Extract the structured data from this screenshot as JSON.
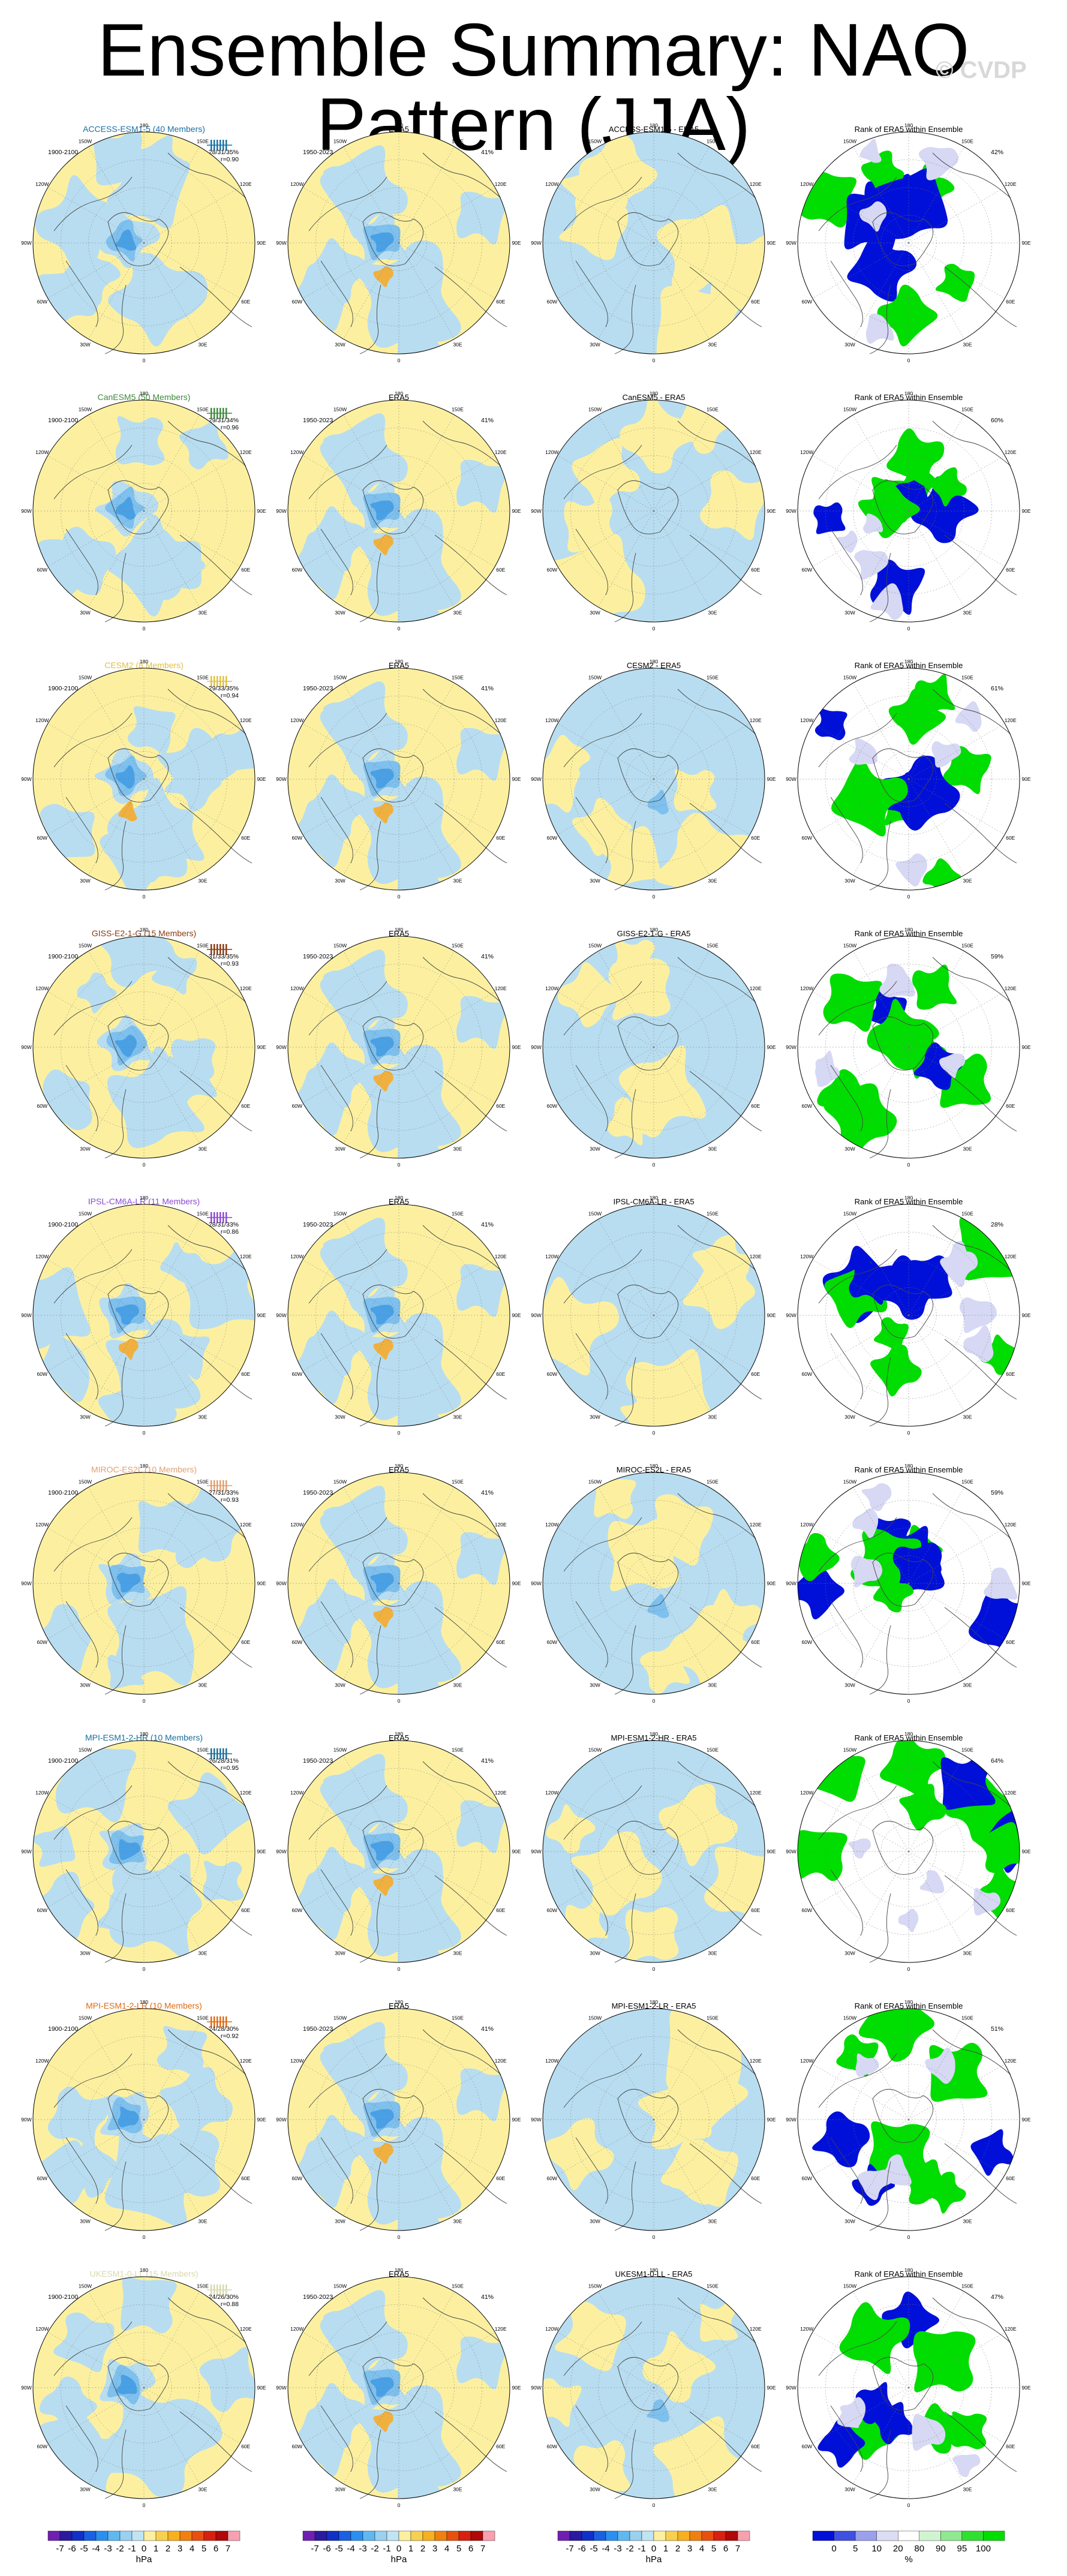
{
  "page": {
    "title": "Ensemble Summary: NAO Pattern (JJA)",
    "watermark": "© CVDP"
  },
  "chart_data": {
    "type": "polar-map-panels",
    "column_titles": {
      "obs": "ERA5",
      "rank": "Rank of ERA5 within Ensemble",
      "diff_suffix": " - ERA5"
    },
    "model_period": "1900-2100",
    "obs_period": "1950-2023",
    "obs_pct": "41%",
    "longitude_labels": [
      "180",
      "150E",
      "120E",
      "90E",
      "60E",
      "30E",
      "0",
      "30W",
      "60W",
      "90W",
      "120W",
      "150W"
    ],
    "rows": [
      {
        "model": "ACCESS-ESM1-5",
        "members": "ACCESS-ESM1-5 (40 Members)",
        "color": "#1a6fa5",
        "stats": "28/31/35%",
        "r": "r=0.90",
        "rank_pct": "42%",
        "blue_frac": 0.4
      },
      {
        "model": "CanESM5",
        "members": "CanESM5 (50 Members)",
        "color": "#3f8a3f",
        "stats": "29/31/34%",
        "r": "r=0.96",
        "rank_pct": "60%",
        "blue_frac": 0.45
      },
      {
        "model": "CESM2",
        "members": "CESM2 (8 Members)",
        "color": "#e0c040",
        "stats": "29/33/35%",
        "r": "r=0.94",
        "rank_pct": "61%",
        "blue_frac": 0.3
      },
      {
        "model": "GISS-E2-1-G",
        "members": "GISS-E2-1-G (15 Members)",
        "color": "#8a3a10",
        "stats": "31/33/35%",
        "r": "r=0.93",
        "rank_pct": "59%",
        "blue_frac": 0.35
      },
      {
        "model": "IPSL-CM6A-LR",
        "members": "IPSL-CM6A-LR (11 Members)",
        "color": "#8a4ad0",
        "stats": "28/31/33%",
        "r": "r=0.86",
        "rank_pct": "28%",
        "blue_frac": 0.55
      },
      {
        "model": "MIROC-ES2L",
        "members": "MIROC-ES2L (10 Members)",
        "color": "#e0a070",
        "stats": "27/31/33%",
        "r": "r=0.93",
        "rank_pct": "59%",
        "blue_frac": 0.3
      },
      {
        "model": "MPI-ESM1-2-HR",
        "members": "MPI-ESM1-2-HR (10 Members)",
        "color": "#1a6f9a",
        "stats": "26/28/31%",
        "r": "r=0.95",
        "rank_pct": "64%",
        "blue_frac": 0.25
      },
      {
        "model": "MPI-ESM1-2-LR",
        "members": "MPI-ESM1-2-LR (10 Members)",
        "color": "#e06a10",
        "stats": "24/28/30%",
        "r": "r=0.92",
        "rank_pct": "51%",
        "blue_frac": 0.4
      },
      {
        "model": "UKESM1-0-LL",
        "members": "UKESM1-0-LL (15 Members)",
        "color": "#d8d8b0",
        "stats": "24/26/30%",
        "r": "r=0.88",
        "rank_pct": "47%",
        "blue_frac": 0.5
      }
    ],
    "colorbar_hpa": {
      "labels": [
        "-7",
        "-6",
        "-5",
        "-4",
        "-3",
        "-2",
        "-1",
        "0",
        "1",
        "2",
        "3",
        "4",
        "5",
        "6",
        "7"
      ],
      "unit": "hPa",
      "colors": [
        "#7020b0",
        "#2a1aa0",
        "#1030c8",
        "#1a60e0",
        "#2a90f0",
        "#60b8f0",
        "#9ad0f0",
        "#c0e4f4",
        "#fcf0a0",
        "#f8d050",
        "#f8b020",
        "#f08010",
        "#e85010",
        "#d82010",
        "#b00808",
        "#f8a0b0"
      ]
    },
    "colorbar_rank": {
      "labels": [
        "0",
        "5",
        "10",
        "20",
        "80",
        "90",
        "95",
        "100"
      ],
      "unit": "%",
      "colors": [
        "#0010d8",
        "#4050e0",
        "#9aa0ec",
        "#dcdcf4",
        "#ffffff",
        "#d0f4d0",
        "#90e890",
        "#30e030",
        "#00dd00"
      ]
    },
    "map_colors": {
      "positive": "#fcf0a0",
      "negative": "#b8ddf0",
      "blue1": "#7ec0ee",
      "blue2": "#4aa0e4",
      "orange": "#f0b040",
      "rank_blue": "#0010d8",
      "rank_green": "#00dd00"
    }
  }
}
